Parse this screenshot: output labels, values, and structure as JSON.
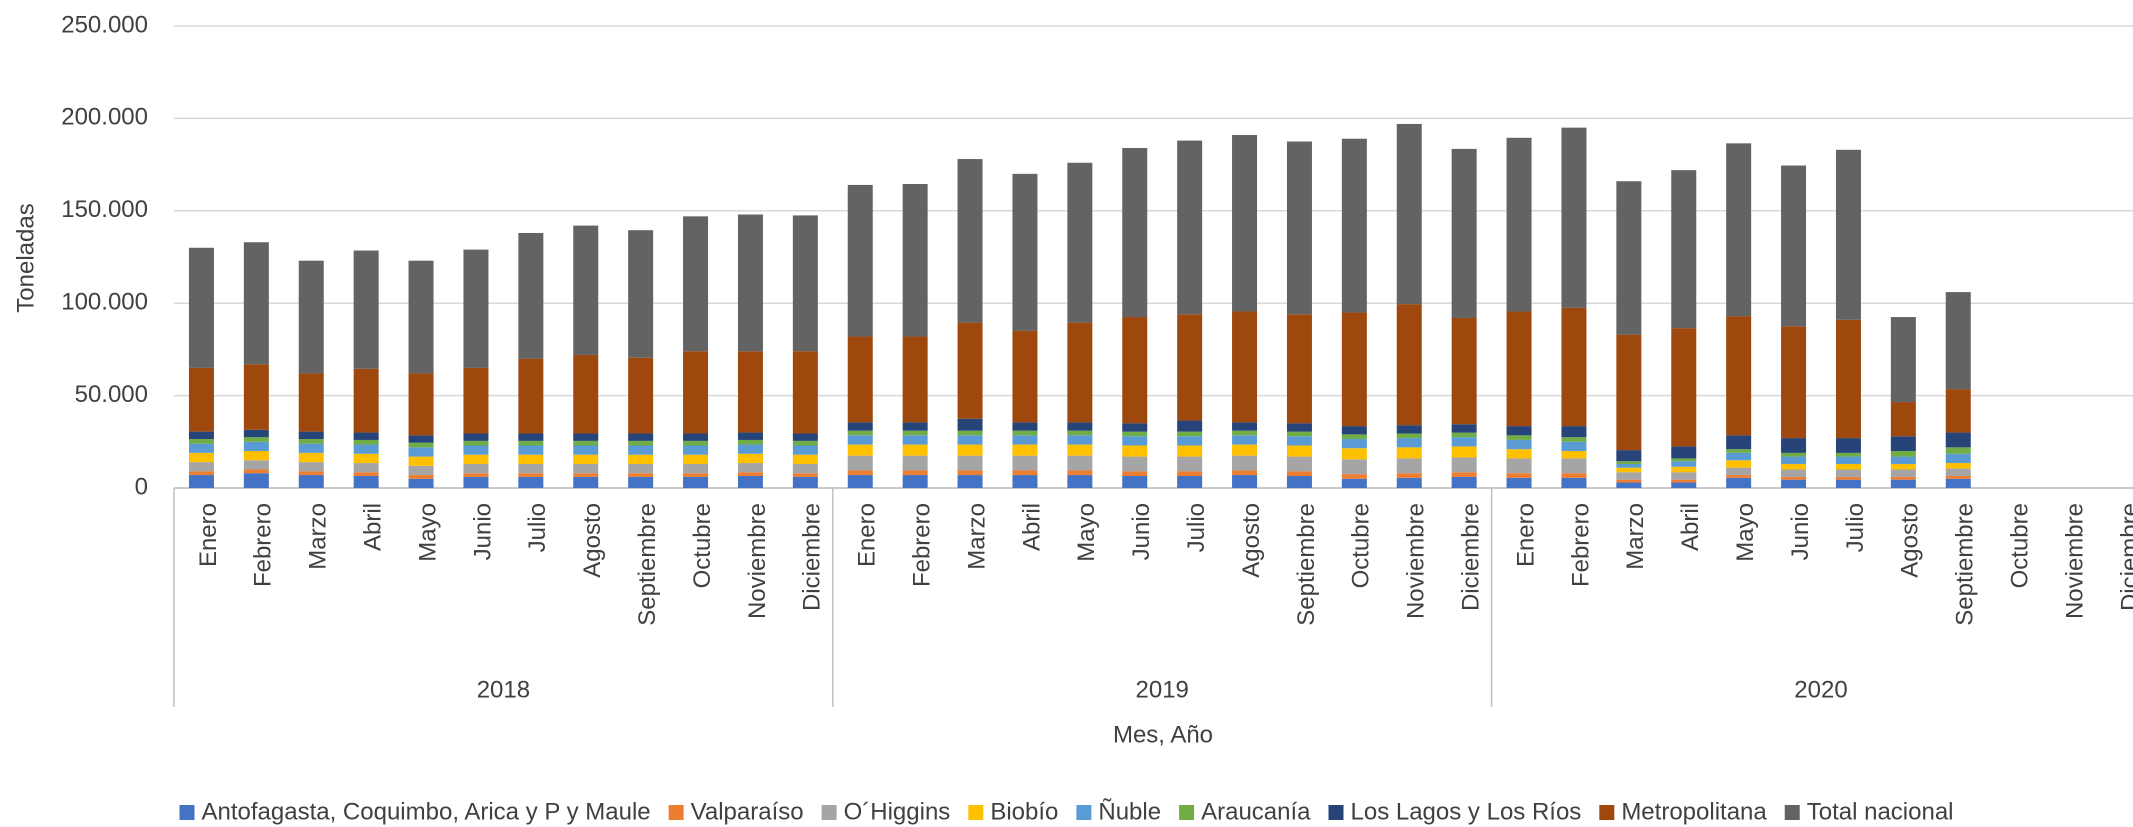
{
  "chart_data": {
    "type": "stacked_bar",
    "y_label": "Toneladas",
    "x_label": "Mes, Año",
    "groups": [
      "2018",
      "2019",
      "2020"
    ],
    "categories": [
      "Enero",
      "Febrero",
      "Marzo",
      "Abril",
      "Mayo",
      "Junio",
      "Julio",
      "Agosto",
      "Septiembre",
      "Octubre",
      "Noviembre",
      "Diciembre",
      "Enero",
      "Febrero",
      "Marzo",
      "Abril",
      "Mayo",
      "Junio",
      "Julio",
      "Agosto",
      "Septiembre",
      "Octubre",
      "Noviembre",
      "Diciembre",
      "Enero",
      "Febrero",
      "Marzo",
      "Abril",
      "Mayo",
      "Junio",
      "Julio",
      "Agosto",
      "Septiembre",
      "Octubre",
      "Noviembre",
      "Diciembre"
    ],
    "ylim": [
      0,
      250000
    ],
    "yticks": [
      0,
      {
        "value": 50000,
        "label": "50.000"
      },
      {
        "value": 100000,
        "label": "100.000"
      },
      {
        "value": 150000,
        "label": "150.000"
      },
      {
        "value": 200000,
        "label": "200.000"
      },
      {
        "value": 250000,
        "label": "250.000"
      }
    ],
    "grid": true,
    "legend": "bottom",
    "series": [
      {
        "name": "Antofagasta, Coquimbo, Arica y P y Maule",
        "color": "#4472c4",
        "values": [
          7000,
          8000,
          7000,
          6500,
          5000,
          6000,
          6000,
          6000,
          6000,
          6000,
          6500,
          6000,
          7000,
          7000,
          7000,
          7000,
          7000,
          6500,
          6500,
          7000,
          6500,
          5000,
          5500,
          6000,
          5500,
          5500,
          3000,
          3000,
          5500,
          4500,
          4500,
          4500,
          5000,
          null,
          null,
          null
        ]
      },
      {
        "name": "Valparaíso",
        "color": "#ed7d31",
        "values": [
          2000,
          2000,
          2000,
          2000,
          2000,
          2000,
          2000,
          2000,
          2000,
          2000,
          2000,
          2000,
          2500,
          2500,
          2500,
          2500,
          2500,
          2500,
          2500,
          2500,
          2500,
          2500,
          2500,
          2500,
          2500,
          2500,
          1500,
          1500,
          1500,
          1500,
          1500,
          1500,
          1500,
          null,
          null,
          null
        ]
      },
      {
        "name": "O´Higgins",
        "color": "#a5a5a5",
        "values": [
          5000,
          5000,
          5000,
          5000,
          5000,
          5000,
          5000,
          5000,
          5000,
          5000,
          5000,
          5000,
          8000,
          8000,
          8000,
          8000,
          8000,
          8000,
          8000,
          8000,
          8000,
          8000,
          8000,
          8000,
          8000,
          8000,
          4000,
          4000,
          4000,
          4000,
          4000,
          4000,
          4000,
          null,
          null,
          null
        ]
      },
      {
        "name": "Biobío",
        "color": "#ffc000",
        "values": [
          5000,
          5000,
          5000,
          5000,
          5000,
          5000,
          5000,
          5000,
          5000,
          5000,
          5000,
          5000,
          6000,
          6000,
          6000,
          6000,
          6000,
          6000,
          6000,
          6000,
          6000,
          6000,
          6000,
          6000,
          5000,
          4000,
          2500,
          3000,
          4000,
          3000,
          3000,
          3000,
          3000,
          null,
          null,
          null
        ]
      },
      {
        "name": "Ñuble",
        "color": "#5b9bd5",
        "values": [
          5000,
          5000,
          5000,
          5000,
          5000,
          5000,
          5000,
          5000,
          5000,
          5000,
          5000,
          5000,
          5000,
          5000,
          5000,
          5000,
          5000,
          5000,
          5000,
          5000,
          5000,
          5000,
          5000,
          5000,
          5000,
          5000,
          2000,
          3000,
          4000,
          4000,
          4000,
          4000,
          5000,
          null,
          null,
          null
        ]
      },
      {
        "name": "Araucanía",
        "color": "#70ad47",
        "values": [
          2500,
          2500,
          2500,
          2500,
          2500,
          2500,
          2500,
          2500,
          2500,
          2500,
          2500,
          2500,
          2500,
          2500,
          2500,
          2500,
          2500,
          2500,
          2500,
          2500,
          2500,
          2500,
          2500,
          2500,
          2500,
          2500,
          1500,
          1500,
          2000,
          2000,
          2000,
          3000,
          3500,
          null,
          null,
          null
        ]
      },
      {
        "name": "Los Lagos y Los Ríos",
        "color": "#264478",
        "values": [
          4000,
          4000,
          4000,
          4000,
          4000,
          4000,
          4000,
          4000,
          4000,
          4000,
          4000,
          4000,
          4500,
          4500,
          6500,
          4500,
          4500,
          4500,
          6000,
          4500,
          4500,
          4500,
          4500,
          4500,
          5000,
          6000,
          6000,
          6500,
          7500,
          8000,
          8000,
          8000,
          8000,
          null,
          null,
          null
        ]
      },
      {
        "name": "Metropolitana",
        "color": "#9e480e",
        "values": [
          34500,
          35500,
          31500,
          34500,
          33500,
          35500,
          40500,
          42500,
          41000,
          44500,
          44000,
          44500,
          46500,
          46500,
          52000,
          49500,
          54000,
          57500,
          57500,
          60000,
          59000,
          61500,
          65500,
          57500,
          62000,
          64000,
          62500,
          64000,
          64500,
          60500,
          64000,
          18500,
          23500,
          null,
          null,
          null
        ]
      },
      {
        "name": "Total nacional",
        "color": "#636363",
        "values": [
          65000,
          66000,
          61000,
          64000,
          61000,
          64000,
          68000,
          70000,
          69000,
          73000,
          74000,
          73500,
          82000,
          82500,
          88500,
          85000,
          86500,
          91500,
          94000,
          95500,
          93500,
          94000,
          97500,
          91500,
          94000,
          97500,
          83000,
          85500,
          93500,
          87000,
          92000,
          46000,
          52500,
          null,
          null,
          null
        ]
      }
    ]
  }
}
